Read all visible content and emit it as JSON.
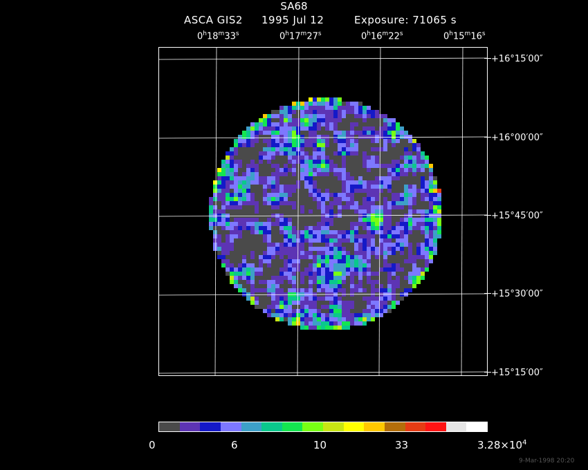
{
  "header": {
    "object": "SA68",
    "instrument": "ASCA GIS2",
    "date": "1995 Jul 12",
    "exposure": "Exposure: 71065 s"
  },
  "ra_labels": [
    {
      "h": "0",
      "m": "18",
      "s": "33"
    },
    {
      "h": "0",
      "m": "17",
      "s": "27"
    },
    {
      "h": "0",
      "m": "16",
      "s": "22"
    },
    {
      "h": "0",
      "m": "15",
      "s": "16"
    }
  ],
  "dec_labels": [
    "+16°15′00″",
    "+16°00′00″",
    "+15°45′00″",
    "+15°30′00″",
    "+15°15′00″"
  ],
  "colorbar": {
    "colors": [
      "#4a4a4a",
      "#5d34b4",
      "#1419c8",
      "#7d78ff",
      "#3da0c8",
      "#0ac88c",
      "#14e650",
      "#78ff14",
      "#c8e614",
      "#ffff00",
      "#ffc800",
      "#b46e0a",
      "#e63c14",
      "#ff1414",
      "#e6e6e6",
      "#ffffff"
    ],
    "labels": [
      "0",
      "6",
      "10",
      "33"
    ],
    "max_label_base": "3.28×10",
    "max_label_exp": "4"
  },
  "timestamp": "9-Mar-1998 20:20"
}
